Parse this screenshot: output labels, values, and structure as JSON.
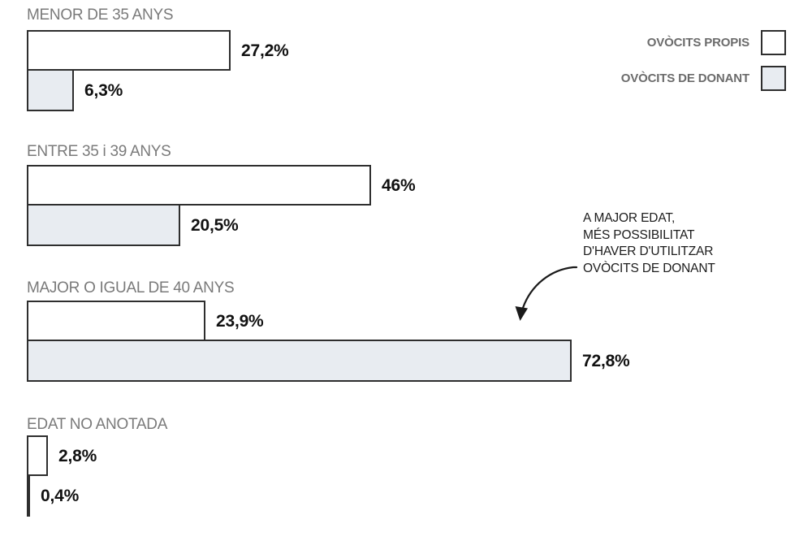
{
  "chart_data": {
    "type": "bar",
    "orientation": "horizontal",
    "categories": [
      "MENOR DE 35 ANYS",
      "ENTRE 35 i 39 ANYS",
      "MAJOR O IGUAL DE 40 ANYS",
      "EDAT NO ANOTADA"
    ],
    "series": [
      {
        "name": "OVÒCITS PROPIS",
        "values": [
          27.2,
          46,
          23.9,
          2.8
        ],
        "labels": [
          "27,2%",
          "46%",
          "23,9%",
          "2,8%"
        ],
        "fill": "#FFFFFF"
      },
      {
        "name": "OVÒCITS DE DONANT",
        "values": [
          6.3,
          20.5,
          72.8,
          0.4
        ],
        "labels": [
          "6,3%",
          "20,5%",
          "72,8%",
          "0,4%"
        ],
        "fill": "#E8ECF1"
      }
    ],
    "xlim": [
      0,
      100
    ],
    "grid": false,
    "legend_position": "top-right",
    "annotation_text": "A MAJOR EDAT, MÉS POSSIBILITAT D'HAVER D'UTILITZAR OVÒCITS DE DONANT"
  },
  "legend": {
    "items": [
      {
        "label": "OVÒCITS PROPIS",
        "fill": "#FFFFFF"
      },
      {
        "label": "OVÒCITS DE DONANT",
        "fill": "#E8ECF1"
      }
    ]
  },
  "annotation": {
    "lines": [
      "A MAJOR EDAT,",
      "MÉS POSSIBILITAT",
      "D'HAVER D'UTILITZAR",
      "OVÒCITS DE DONANT"
    ]
  },
  "colors": {
    "background": "#FFFFFF",
    "bar_border": "#2E2E2E",
    "donant_fill": "#E8ECF1",
    "propis_fill": "#FFFFFF",
    "category_label": "#7A7A7A",
    "value_label": "#111111",
    "legend_text": "#6B6B6B",
    "annotation_text": "#1C1C1C"
  }
}
